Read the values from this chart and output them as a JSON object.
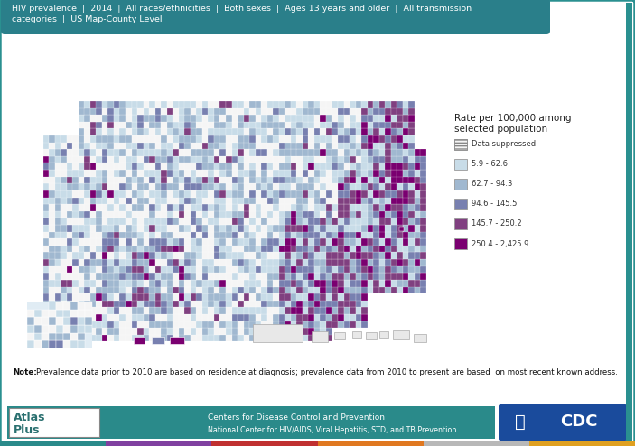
{
  "title_text": "HIV prevalence  |  2014  |  All races/ethnicities  |  Both sexes  |  Ages 13 years and older  |  All transmission\ncategories  |  US Map-County Level",
  "title_bg_color": "#2a7f8a",
  "title_text_color": "#ffffff",
  "background_color": "#e8f0f0",
  "inner_bg_color": "#ffffff",
  "legend_title": "Rate per 100,000 among\nselected population",
  "legend_labels": [
    "Data suppressed",
    "5.9 - 62.6",
    "62.7 - 94.3",
    "94.6 - 145.5",
    "145.7 - 250.2",
    "250.4 - 2,425.9"
  ],
  "legend_colors": [
    "#f5f5f5",
    "#c8dce8",
    "#a0b8d0",
    "#7880b0",
    "#804080",
    "#7a0070"
  ],
  "note_text": "Prevalence data prior to 2010 are based on residence at diagnosis; prevalence data from 2010 to present are based  on most recent known address.",
  "note_bold": "Note:",
  "footer_text1": "Centers for Disease Control and Prevention",
  "footer_text2": "National Center for HIV/AIDS, Viral Hepatitis, STD, and TB Prevention",
  "footer_bg": "#2a8a8a",
  "outer_border_color": "#2a9090",
  "teal_bar_color": "#2a8a8a",
  "atlas_color": "#2a7070",
  "cdc_blue": "#1a4b9c",
  "map_colors": [
    "#f5f5f5",
    "#c8dce8",
    "#a0b8d0",
    "#7880b0",
    "#804080",
    "#7a0070"
  ]
}
